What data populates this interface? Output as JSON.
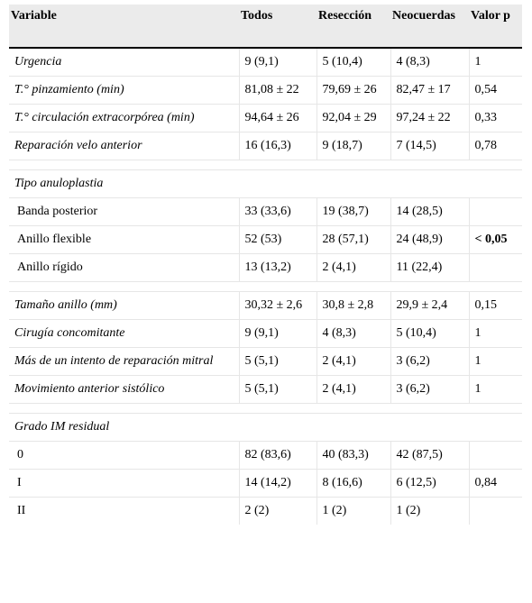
{
  "headers": [
    "Variable",
    "Todos",
    "Resección",
    "Neocuerdas",
    "Valor p"
  ],
  "rows": [
    {
      "label": "Urgencia",
      "todos": "9 (9,1)",
      "reseccion": "5 (10,4)",
      "neocuerdas": "4 (8,3)",
      "p": "1"
    },
    {
      "label": "T.° pinzamiento (min)",
      "todos": "81,08 ± 22",
      "reseccion": "79,69 ± 26",
      "neocuerdas": "82,47 ± 17",
      "p": "0,54"
    },
    {
      "label": "T.° circulación extracorpórea (min)",
      "todos": "94,64 ± 26",
      "reseccion": "92,04 ± 29",
      "neocuerdas": "97,24 ± 22",
      "p": "0,33"
    },
    {
      "label": "Reparación velo anterior",
      "todos": "16 (16,3)",
      "reseccion": "9 (18,7)",
      "neocuerdas": "7 (14,5)",
      "p": "0,78"
    },
    {
      "section": "Tipo anuloplastia"
    },
    {
      "label": "Banda posterior",
      "todos": "33 (33,6)",
      "reseccion": "19 (38,7)",
      "neocuerdas": "14 (28,5)",
      "p": ""
    },
    {
      "label": "Anillo flexible",
      "todos": "52 (53)",
      "reseccion": "28 (57,1)",
      "neocuerdas": "24 (48,9)",
      "p": "< 0,05"
    },
    {
      "label": "Anillo rígido",
      "todos": "13 (13,2)",
      "reseccion": "2 (4,1)",
      "neocuerdas": "11 (22,4)",
      "p": ""
    },
    {
      "label": "Tamaño anillo (mm)",
      "todos": "30,32 ± 2,6",
      "reseccion": "30,8 ± 2,8",
      "neocuerdas": "29,9 ± 2,4",
      "p": "0,15"
    },
    {
      "label": "Cirugía concomitante",
      "todos": "9 (9,1)",
      "reseccion": "4 (8,3)",
      "neocuerdas": "5 (10,4)",
      "p": "1"
    },
    {
      "label": "Más de un intento de reparación mitral",
      "todos": "5 (5,1)",
      "reseccion": "2 (4,1)",
      "neocuerdas": "3 (6,2)",
      "p": "1"
    },
    {
      "label": "Movimiento anterior sistólico",
      "todos": "5 (5,1)",
      "reseccion": "2 (4,1)",
      "neocuerdas": "3 (6,2)",
      "p": "1"
    },
    {
      "section": "Grado IM residual"
    },
    {
      "label": "0",
      "todos": "82 (83,6)",
      "reseccion": "40 (83,3)",
      "neocuerdas": "42 (87,5)",
      "p": ""
    },
    {
      "label": "I",
      "todos": "14 (14,2)",
      "reseccion": "8 (16,6)",
      "neocuerdas": "6 (12,5)",
      "p": "0,84"
    },
    {
      "label": "II",
      "todos": "2 (2)",
      "reseccion": "1 (2)",
      "neocuerdas": "1 (2)",
      "p": ""
    }
  ]
}
